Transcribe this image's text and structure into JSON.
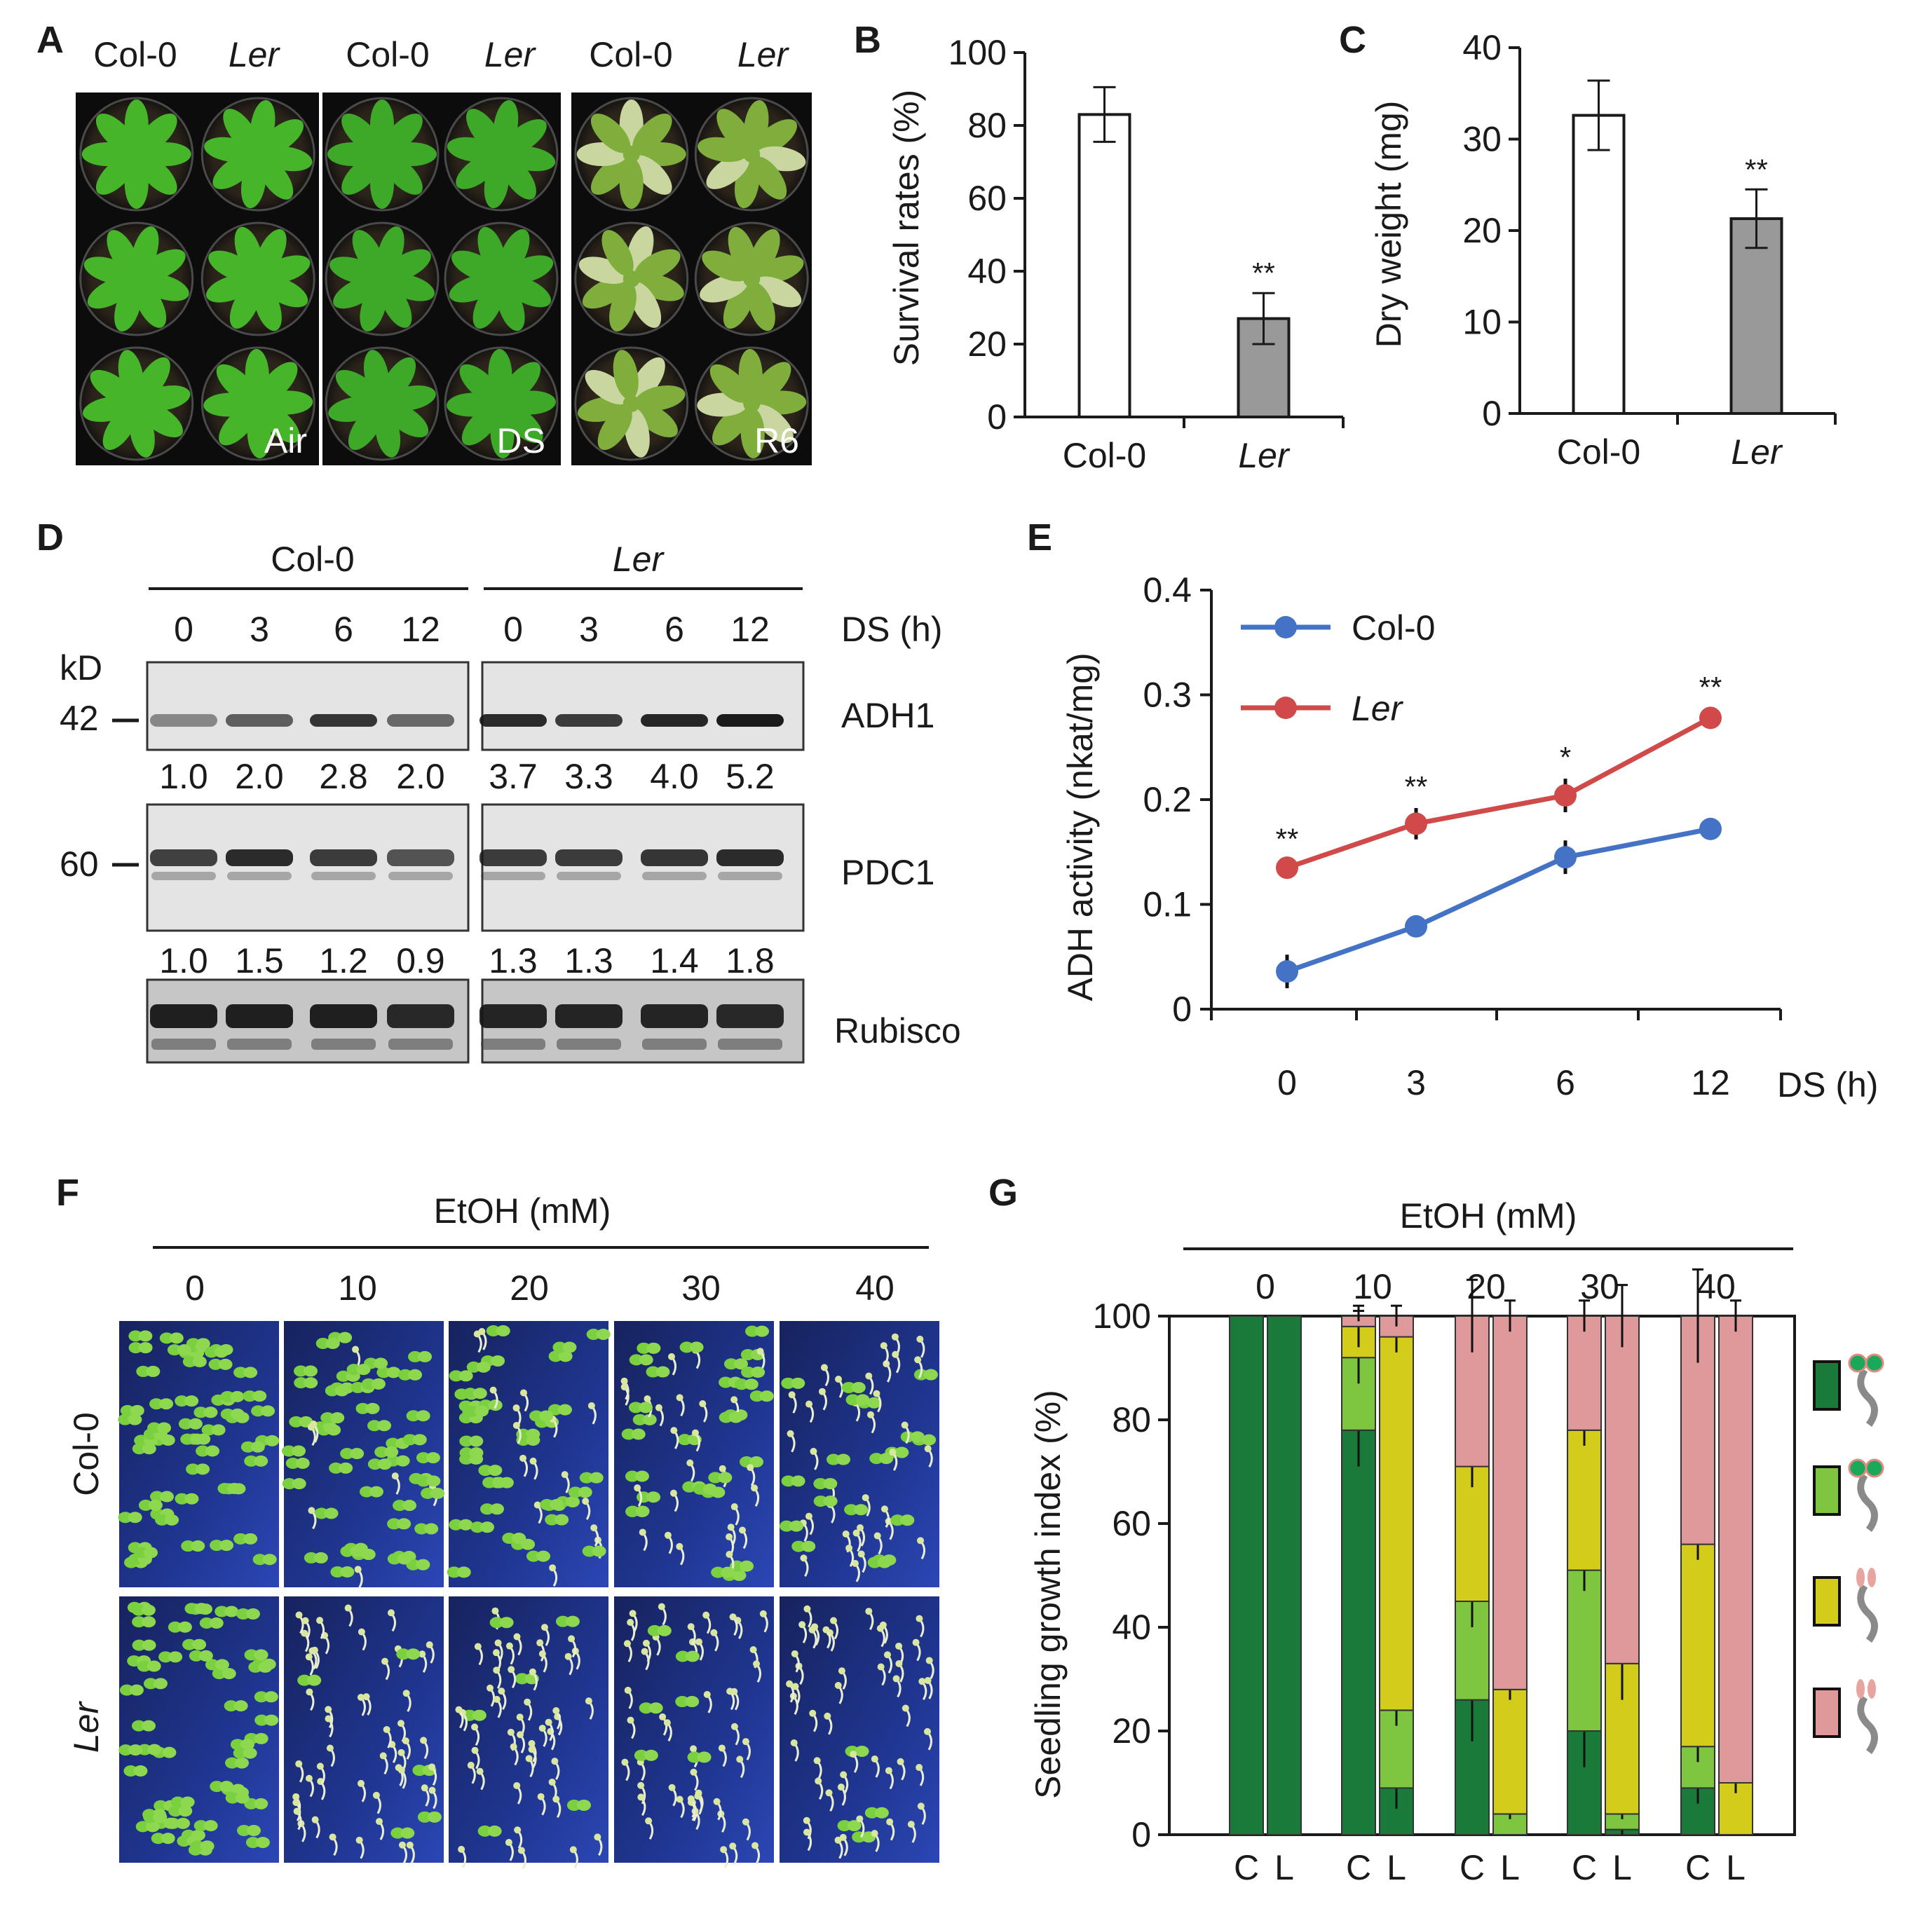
{
  "panels": {
    "a": {
      "letter": "A",
      "columns": [
        "Col-0",
        "Ler",
        "Col-0",
        "Ler",
        "Col-0",
        "Ler"
      ],
      "treatments": [
        "Air",
        "DS",
        "R6"
      ]
    },
    "b": {
      "letter": "B",
      "ylabel": "Survival rates (%)"
    },
    "c": {
      "letter": "C",
      "ylabel": "Dry weight (mg)"
    },
    "d": {
      "letter": "D",
      "groups": [
        "Col-0",
        "Ler"
      ],
      "timepoints": [
        "0",
        "3",
        "6",
        "12",
        "0",
        "3",
        "6",
        "12"
      ],
      "time_unit": "DS (h)",
      "kd_label": "kD",
      "markers": [
        "42",
        "60"
      ],
      "blots": [
        "ADH1",
        "PDC1",
        "Rubisco"
      ],
      "adh1_values": [
        "1.0",
        "2.0",
        "2.8",
        "2.0",
        "3.7",
        "3.3",
        "4.0",
        "5.2"
      ],
      "pdc1_values": [
        "1.0",
        "1.5",
        "1.2",
        "0.9",
        "1.3",
        "1.3",
        "1.4",
        "1.8"
      ]
    },
    "e": {
      "letter": "E",
      "ylabel": "ADH activity (nkat/mg)",
      "xlabel": "DS (h)"
    },
    "f": {
      "letter": "F",
      "title": "EtOH (mM)",
      "concentrations": [
        "0",
        "10",
        "20",
        "30",
        "40"
      ],
      "rows": [
        "Col-0",
        "Ler"
      ]
    },
    "g": {
      "letter": "G",
      "title": "EtOH (mM)",
      "ylabel": "Seedling growth index (%)",
      "concentrations": [
        "0",
        "10",
        "20",
        "30",
        "40"
      ],
      "bar_labels": [
        "C",
        "L"
      ]
    }
  },
  "chart_data": [
    {
      "panel": "B",
      "type": "bar",
      "categories": [
        "Col-0",
        "Ler"
      ],
      "values": [
        83,
        27
      ],
      "errors": [
        7.5,
        7
      ],
      "significance": [
        "",
        "**"
      ],
      "bar_colors": [
        "#ffffff",
        "#999999"
      ],
      "ylabel": "Survival rates (%)",
      "ylim": [
        0,
        100
      ],
      "yticks": [
        0,
        20,
        40,
        60,
        80,
        100
      ]
    },
    {
      "panel": "C",
      "type": "bar",
      "categories": [
        "Col-0",
        "Ler"
      ],
      "values": [
        32.6,
        21.3
      ],
      "errors": [
        3.8,
        3.2
      ],
      "significance": [
        "",
        "**"
      ],
      "bar_colors": [
        "#ffffff",
        "#999999"
      ],
      "ylabel": "Dry weight (mg)",
      "ylim": [
        0,
        40
      ],
      "yticks": [
        0,
        10,
        20,
        30,
        40
      ]
    },
    {
      "panel": "E",
      "type": "line",
      "x": [
        "0",
        "3",
        "6",
        "12"
      ],
      "series": [
        {
          "name": "Col-0",
          "color": "#4472c4",
          "values": [
            0.036,
            0.079,
            0.145,
            0.172
          ],
          "errors": [
            0.016,
            0.006,
            0.016,
            0.009
          ]
        },
        {
          "name": "Ler",
          "color": "#d04a4a",
          "values": [
            0.135,
            0.177,
            0.204,
            0.278
          ],
          "errors": [
            0.007,
            0.015,
            0.016,
            0.009
          ]
        }
      ],
      "significance": [
        "**",
        "**",
        "*",
        "**"
      ],
      "ylabel": "ADH activity (nkat/mg)",
      "xlabel": "DS (h)",
      "ylim": [
        0,
        0.4
      ],
      "yticks": [
        "0",
        "0.1",
        "0.2",
        "0.3",
        "0.4"
      ],
      "legend": "top-left"
    },
    {
      "panel": "G",
      "type": "bar",
      "stacked": true,
      "categories": [
        "C",
        "L",
        "C",
        "L",
        "C",
        "L",
        "C",
        "L",
        "C",
        "L"
      ],
      "groups": [
        "0",
        "10",
        "20",
        "30",
        "40"
      ],
      "series": [
        {
          "color": "#1a7a3a",
          "values": [
            100,
            100,
            78,
            9,
            26,
            0,
            20,
            1,
            9,
            0
          ],
          "errors": [
            0,
            0,
            7,
            4,
            8,
            0,
            7,
            1,
            3,
            0
          ]
        },
        {
          "color": "#7ec540",
          "values": [
            0,
            0,
            14,
            15,
            19,
            4,
            31,
            3,
            8,
            0
          ],
          "errors": [
            0,
            0,
            5,
            3,
            5,
            1,
            4,
            1,
            3,
            0
          ]
        },
        {
          "color": "#d4cc1a",
          "values": [
            0,
            0,
            6,
            72,
            26,
            24,
            27,
            29,
            39,
            10
          ],
          "errors": [
            0,
            0,
            4,
            3,
            4,
            2,
            3,
            7,
            3,
            2
          ]
        },
        {
          "color": "#e0999a",
          "values": [
            0,
            0,
            2,
            4,
            29,
            72,
            22,
            67,
            44,
            90
          ],
          "errors": [
            0,
            0,
            1,
            2,
            7,
            3,
            3,
            6,
            9,
            3
          ]
        }
      ],
      "ylabel": "Seedling growth index (%)",
      "ylim": [
        0,
        100
      ],
      "yticks": [
        0,
        20,
        40,
        60,
        80,
        100
      ]
    }
  ]
}
